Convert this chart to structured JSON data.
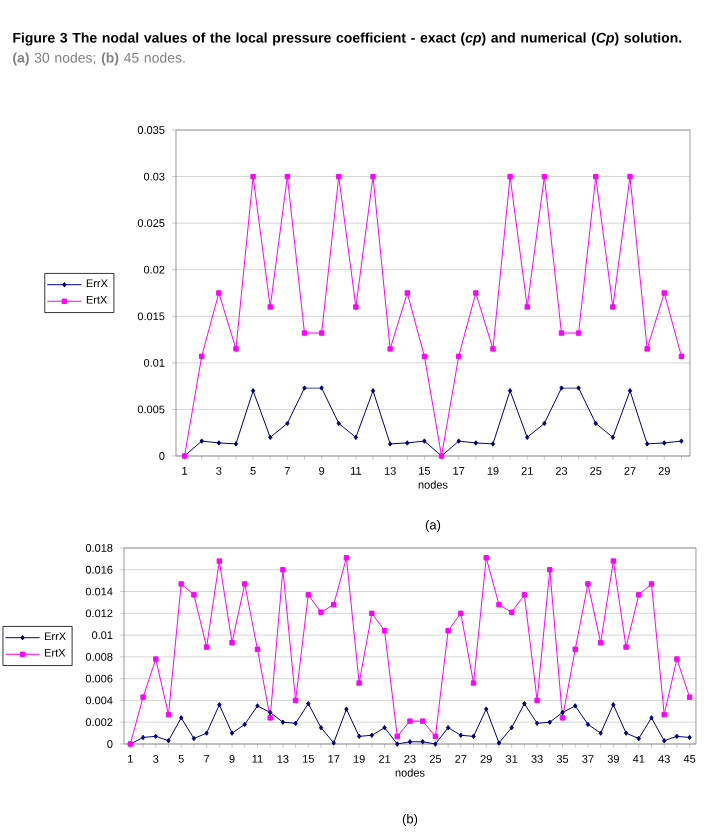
{
  "chart_data": [
    {
      "type": "line",
      "annotations": [
        "Figure 3  The nodal values of the local pressure coefficient - exact (*cp*) and numerical (*Cp*) solution.",
        "**(a)** 30 nodes; **(b)** 45 nodes.",
        "(a)"
      ],
      "xlabel": "nodes",
      "categories": [
        "1",
        null,
        "3",
        null,
        "5",
        null,
        "7",
        null,
        "9",
        null,
        "11",
        null,
        "13",
        null,
        "15",
        null,
        "17",
        null,
        "19",
        null,
        "21",
        null,
        "23",
        null,
        "25",
        null,
        "27",
        null,
        "29",
        null
      ],
      "series": [
        {
          "name": "ErrX",
          "color": "#000080",
          "marker": "diamond",
          "values": [
            0,
            0.0016,
            0.0014,
            0.0013,
            0.007,
            0.002,
            0.0035,
            0.0073,
            0.0073,
            0.0035,
            0.002,
            0.007,
            0.0013,
            0.0014,
            0.0016,
            0,
            0.0016,
            0.0014,
            0.0013,
            0.007,
            0.002,
            0.0035,
            0.0073,
            0.0073,
            0.0035,
            0.002,
            0.007,
            0.0013,
            0.0014,
            0.0016
          ]
        },
        {
          "name": "ErtX",
          "color": "#ff00ff",
          "marker": "square",
          "values": [
            0,
            0.0107,
            0.0175,
            0.0115,
            0.03,
            0.016,
            0.03,
            0.0132,
            0.0132,
            0.03,
            0.016,
            0.03,
            0.0115,
            0.0175,
            0.0107,
            0,
            0.0107,
            0.0175,
            0.0115,
            0.03,
            0.016,
            0.03,
            0.0132,
            0.0132,
            0.03,
            0.016,
            0.03,
            0.0115,
            0.0175,
            0.0107
          ]
        }
      ],
      "ylim": [
        0,
        0.035
      ],
      "yticks": [
        0,
        0.005,
        0.01,
        0.015,
        0.02,
        0.025,
        0.03,
        0.035
      ],
      "grid": "y",
      "legend": "left",
      "line_style": "solid"
    },
    {
      "type": "line",
      "annotations": [
        "(b)"
      ],
      "xlabel": "nodes",
      "categories": [
        "1",
        null,
        "3",
        null,
        "5",
        null,
        "7",
        null,
        "9",
        null,
        "11",
        null,
        "13",
        null,
        "15",
        null,
        "17",
        null,
        "19",
        null,
        "21",
        null,
        "23",
        null,
        "25",
        null,
        "27",
        null,
        "29",
        null,
        "31",
        null,
        "33",
        null,
        "35",
        null,
        "37",
        null,
        "39",
        null,
        "41",
        null,
        "43",
        null,
        "45"
      ],
      "series": [
        {
          "name": "ErrX",
          "color": "#000080",
          "marker": "diamond",
          "values": [
            0,
            0.0006,
            0.0007,
            0.0003,
            0.0024,
            0.0005,
            0.001,
            0.0036,
            0.001,
            0.0018,
            0.0035,
            0.0029,
            0.002,
            0.0019,
            0.0037,
            0.0015,
            0.0001,
            0.0032,
            0.0007,
            0.0008,
            0.0015,
            0,
            0.0002,
            0.0002,
            0,
            0.0015,
            0.0008,
            0.0007,
            0.0032,
            0.0001,
            0.0015,
            0.0037,
            0.0019,
            0.002,
            0.0029,
            0.0035,
            0.0018,
            0.001,
            0.0036,
            0.001,
            0.0005,
            0.0024,
            0.0003,
            0.0007,
            0.0006
          ]
        },
        {
          "name": "ErtX",
          "color": "#ff00ff",
          "marker": "square",
          "values": [
            0,
            0.0043,
            0.0078,
            0.0027,
            0.0147,
            0.0137,
            0.0089,
            0.0168,
            0.0093,
            0.0147,
            0.0087,
            0.0024,
            0.016,
            0.004,
            0.0137,
            0.0121,
            0.0128,
            0.0171,
            0.0056,
            0.012,
            0.0104,
            0.0007,
            0.0021,
            0.0021,
            0.0007,
            0.0104,
            0.012,
            0.0056,
            0.0171,
            0.0128,
            0.0121,
            0.0137,
            0.004,
            0.016,
            0.0024,
            0.0087,
            0.0147,
            0.0093,
            0.0168,
            0.0089,
            0.0137,
            0.0147,
            0.0027,
            0.0078,
            0.0043
          ]
        }
      ],
      "ylim": [
        0,
        0.018
      ],
      "yticks": [
        0,
        0.002,
        0.004,
        0.006,
        0.008,
        0.01,
        0.012,
        0.014,
        0.016,
        0.018
      ],
      "grid": "y",
      "legend": "left",
      "line_style": "solid"
    }
  ]
}
